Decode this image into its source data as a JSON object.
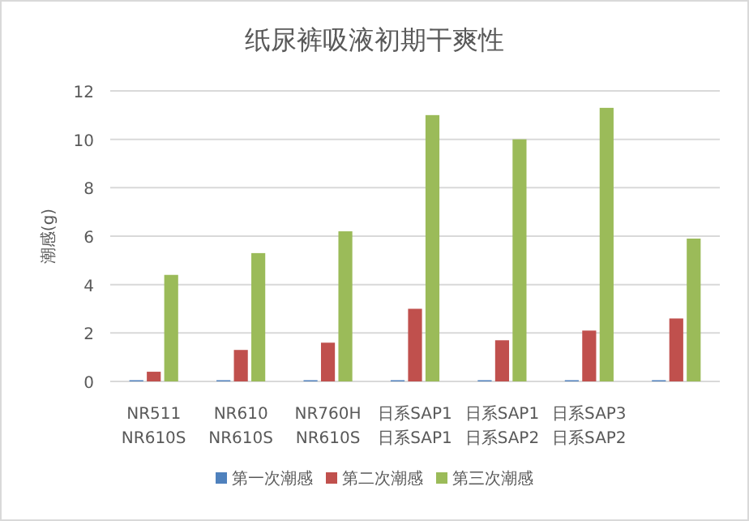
{
  "chart_data": {
    "type": "bar",
    "title": "纸尿裤吸液初期干爽性",
    "ylabel": "潮感(g)",
    "categories": [
      "NR511\nNR610S",
      "NR610\nNR610S",
      "NR760H\nNR610S",
      "日系SAP1\n日系SAP1",
      "日系SAP1\n日系SAP2",
      "日系SAP3\n日系SAP2",
      null
    ],
    "series": [
      {
        "name": "第一次潮感",
        "color": "#4f81bd",
        "values": [
          0.05,
          0.05,
          0.05,
          0.05,
          0.05,
          0.05,
          0.05
        ]
      },
      {
        "name": "第二次潮感",
        "color": "#c0504d",
        "values": [
          0.4,
          1.3,
          1.6,
          3.0,
          1.7,
          2.1,
          2.6
        ]
      },
      {
        "name": "第三次潮感",
        "color": "#9bbb59",
        "values": [
          4.4,
          5.3,
          6.2,
          11.0,
          10.0,
          11.3,
          5.9
        ]
      }
    ],
    "ylim": [
      0,
      12
    ],
    "yticks": [
      0,
      2,
      4,
      6,
      8,
      10,
      12
    ],
    "grid": "y",
    "legend": "bottom"
  }
}
